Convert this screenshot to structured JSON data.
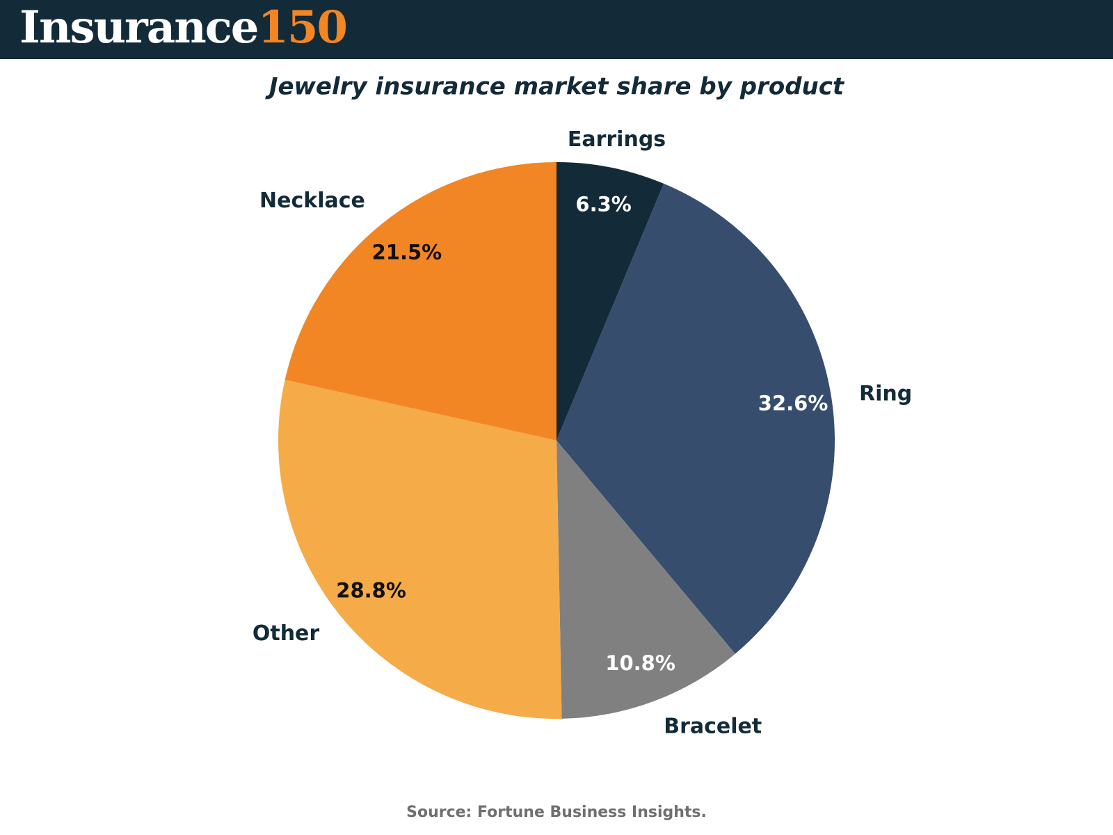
{
  "header": {
    "logo_text": "Insurance",
    "logo_number": "150"
  },
  "chart_data": {
    "type": "pie",
    "title": "Jewelry insurance market share by product",
    "categories": [
      "Earrings",
      "Ring",
      "Bracelet",
      "Other",
      "Necklace"
    ],
    "values": [
      6.3,
      32.6,
      10.8,
      28.8,
      21.5
    ],
    "value_labels": [
      "6.3%",
      "32.6%",
      "10.8%",
      "28.8%",
      "21.5%"
    ],
    "colors": [
      "#132a38",
      "#374d6e",
      "#808080",
      "#f5ab48",
      "#f28624"
    ],
    "source": "Source: Fortune Business Insights."
  }
}
